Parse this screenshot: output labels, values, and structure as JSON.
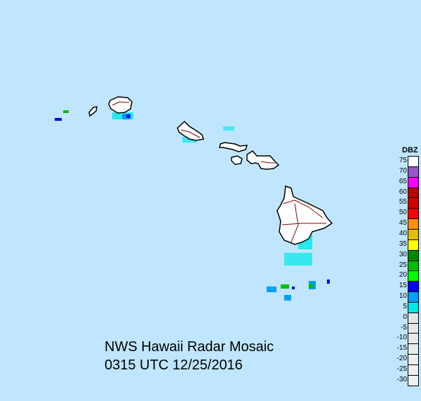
{
  "title": "NWS Hawaii Radar Mosaic",
  "timestamp": "0315 UTC 12/25/2016",
  "legend": {
    "title": "DBZ",
    "entries": [
      {
        "label": "75",
        "color": "#ffffff"
      },
      {
        "label": "70",
        "color": "#9955c9"
      },
      {
        "label": "65",
        "color": "#ff00ff"
      },
      {
        "label": "60",
        "color": "#bb0000"
      },
      {
        "label": "55",
        "color": "#d40000"
      },
      {
        "label": "50",
        "color": "#ff0000"
      },
      {
        "label": "45",
        "color": "#ff9000"
      },
      {
        "label": "40",
        "color": "#e5bc00"
      },
      {
        "label": "35",
        "color": "#ffff00"
      },
      {
        "label": "30",
        "color": "#008800"
      },
      {
        "label": "25",
        "color": "#00c000"
      },
      {
        "label": "20",
        "color": "#00ff00"
      },
      {
        "label": "15",
        "color": "#0000ee"
      },
      {
        "label": "10",
        "color": "#00a0f5"
      },
      {
        "label": "5",
        "color": "#00e8e8"
      },
      {
        "label": "0",
        "color": "#e5e5e5"
      },
      {
        "label": "-5",
        "color": "#e7e7e7"
      },
      {
        "label": "-10",
        "color": "#e9e9e9"
      },
      {
        "label": "-15",
        "color": "#ebebeb"
      },
      {
        "label": "-20",
        "color": "#ededed"
      },
      {
        "label": "-25",
        "color": "#efefef"
      },
      {
        "label": "-30",
        "color": "#f1f1f1"
      }
    ]
  },
  "colors": {
    "ocean": "#bfe6fe",
    "land": "#ffffff",
    "coast": "#000000",
    "roads": "#880000"
  }
}
